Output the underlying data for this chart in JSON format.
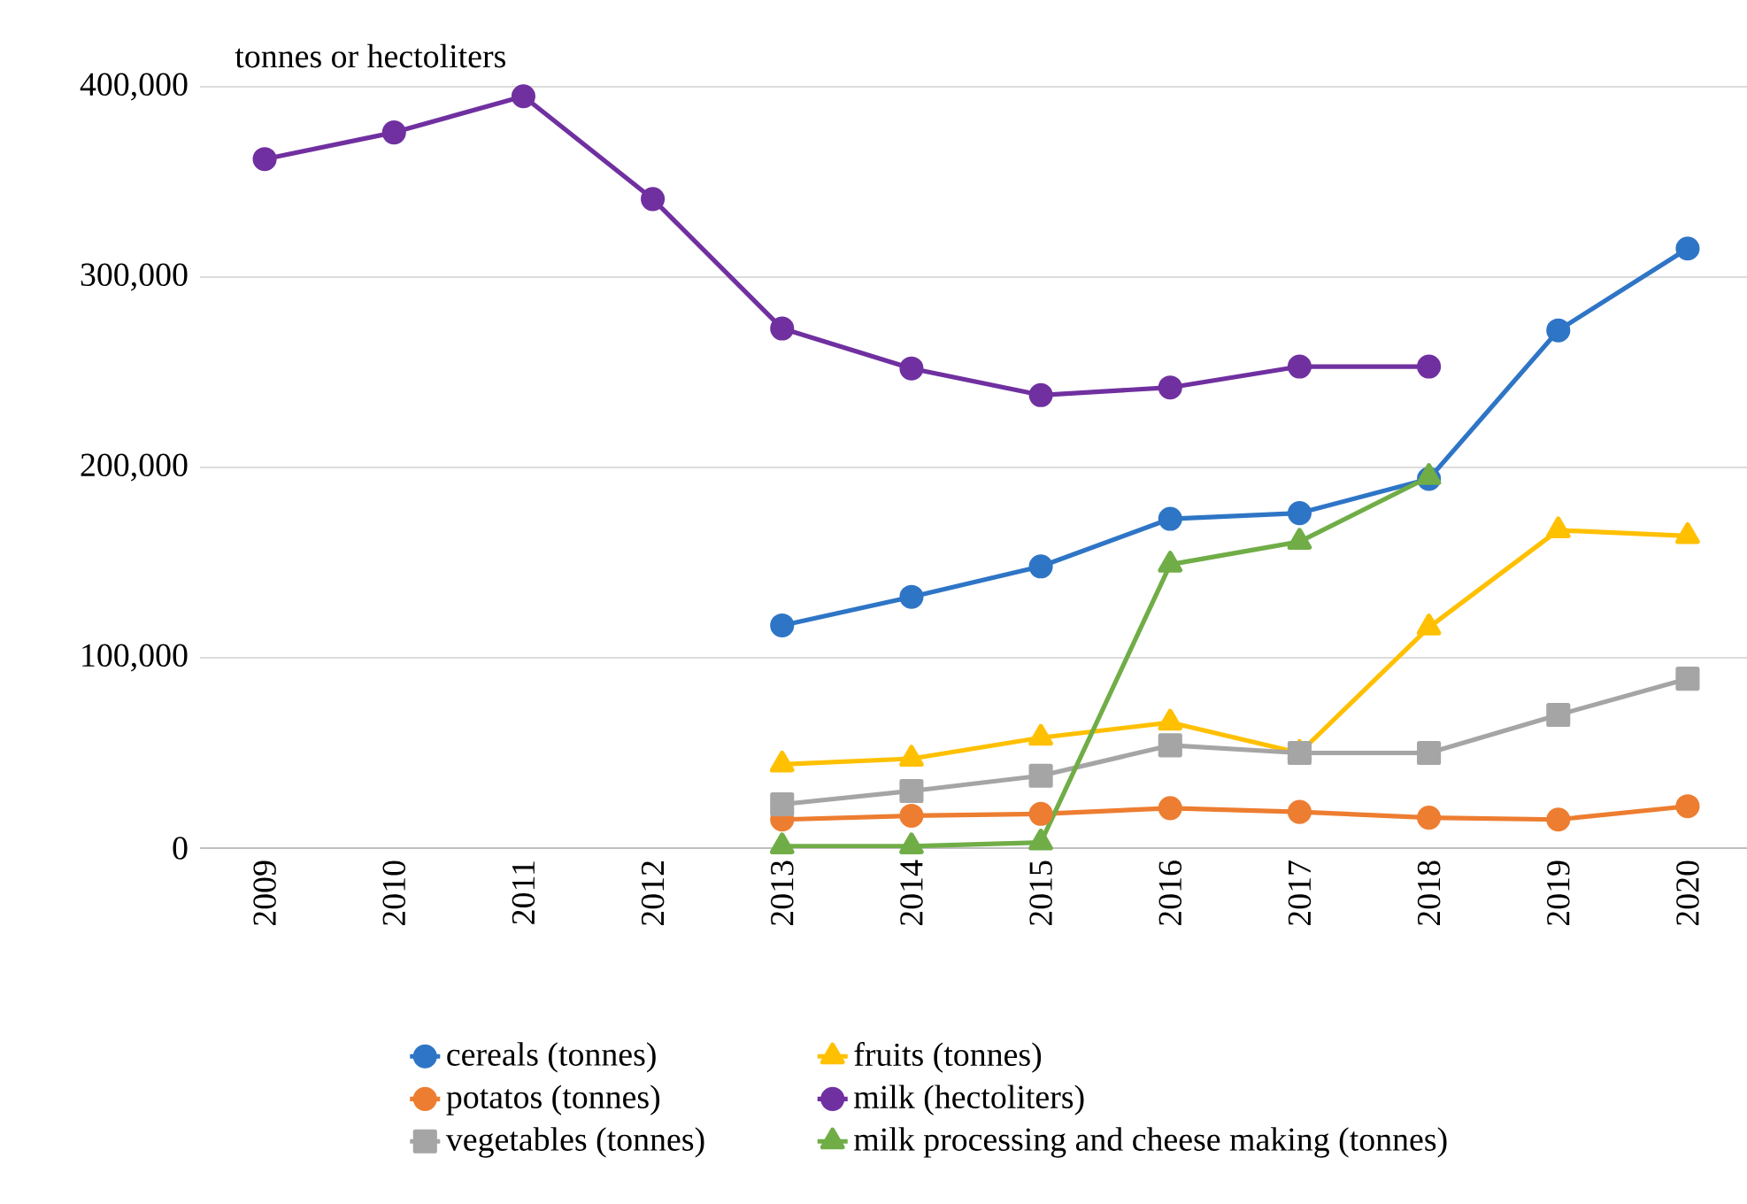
{
  "chart_data": {
    "type": "line",
    "ylabel": "tonnes or hectoliters",
    "categories": [
      "2009",
      "2010",
      "2011",
      "2012",
      "2013",
      "2014",
      "2015",
      "2016",
      "2017",
      "2018",
      "2019",
      "2020"
    ],
    "series": [
      {
        "name": "cereals (tonnes)",
        "color": "#2e75c6",
        "marker": "circle",
        "values": [
          null,
          null,
          null,
          null,
          117000,
          132000,
          148000,
          173000,
          176000,
          194000,
          272000,
          315000
        ]
      },
      {
        "name": "fruits (tonnes)",
        "color": "#ffc000",
        "marker": "triangle",
        "values": [
          null,
          null,
          null,
          null,
          44000,
          47000,
          58000,
          66000,
          50000,
          116000,
          167000,
          164000
        ]
      },
      {
        "name": "potatos (tonnes)",
        "color": "#ed7d31",
        "marker": "circle",
        "values": [
          null,
          null,
          null,
          null,
          15000,
          17000,
          18000,
          21000,
          19000,
          16000,
          15000,
          22000
        ]
      },
      {
        "name": "milk (hectoliters)",
        "color": "#7030a0",
        "marker": "circle",
        "values": [
          362000,
          376000,
          395000,
          341000,
          273000,
          252000,
          238000,
          242000,
          253000,
          253000,
          null,
          null
        ]
      },
      {
        "name": "vegetables (tonnes)",
        "color": "#a5a5a5",
        "marker": "square",
        "values": [
          null,
          null,
          null,
          null,
          23000,
          30000,
          38000,
          54000,
          50000,
          50000,
          70000,
          89000
        ]
      },
      {
        "name": "milk processing and cheese making (tonnes)",
        "color": "#70ad47",
        "marker": "triangle",
        "values": [
          null,
          null,
          null,
          null,
          1000,
          1000,
          3000,
          149000,
          161000,
          195000,
          null,
          null
        ]
      }
    ],
    "ylim": [
      0,
      400000
    ],
    "yticks": [
      0,
      {
        "value": 100000,
        "label": "100,000"
      },
      {
        "value": 200000,
        "label": "200,000"
      },
      {
        "value": 300000,
        "label": "300,000"
      },
      {
        "value": 400000,
        "label": "400,000"
      }
    ],
    "grid": "y",
    "legend": "bottom"
  }
}
